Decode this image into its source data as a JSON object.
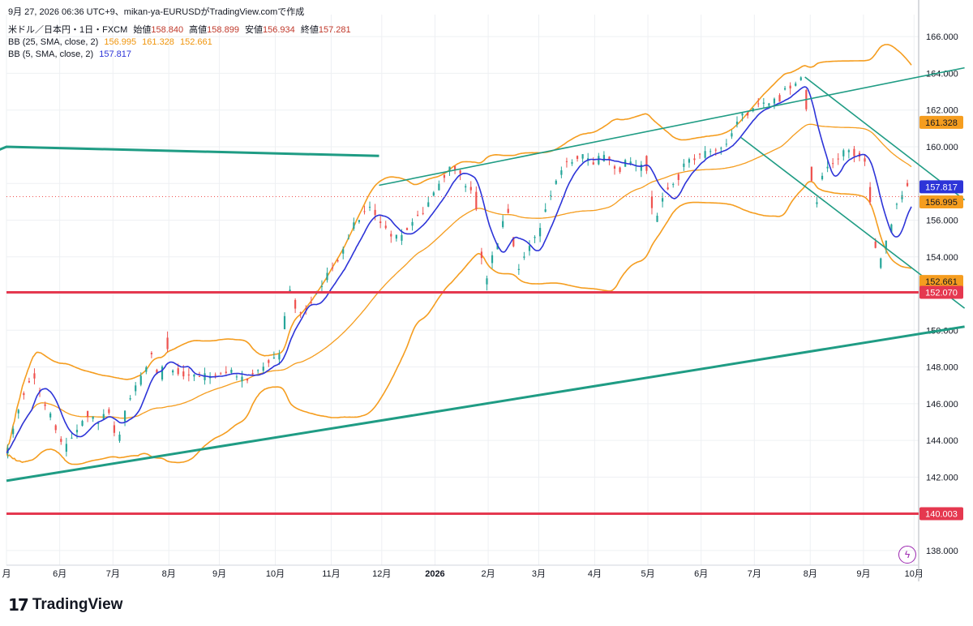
{
  "header": {
    "title_line": "9月 27, 2026 06:36 UTC+9、mikan-ya-EURUSDがTradingView.comで作成",
    "symbol": "米ドル／日本円・1日・FXCM",
    "open_label": "始値",
    "open_value": "158.840",
    "high_label": "高値",
    "high_value": "158.899",
    "low_label": "安値",
    "low_value": "156.934",
    "close_label": "終値",
    "close_value": "157.281",
    "bb25_label": "BB (25, SMA, close, 2)",
    "bb25_basis": "156.995",
    "bb25_upper": "161.328",
    "bb25_lower": "152.661",
    "bb5_label": "BB (5, SMA, close, 2)",
    "bb5_basis": "157.817"
  },
  "branding": {
    "logo_mark": "17",
    "logo_text": "TradingView",
    "bolt_icon": "ϟ"
  },
  "colors": {
    "bull": "#26a69a",
    "bear": "#ef5350",
    "bb25": "#f59d1f",
    "bb5": "#2d34d8",
    "channel": "#1f9c84",
    "hline": "#e5384f",
    "grid": "#eef0f3",
    "axis_text": "#131722"
  },
  "chart_data": {
    "type": "candlestick",
    "ylim": [
      137.2,
      167.2
    ],
    "yticks": [
      "138.000",
      "140.000",
      "142.000",
      "144.000",
      "146.000",
      "148.000",
      "150.000",
      "152.000",
      "154.000",
      "156.000",
      "158.000",
      "160.000",
      "162.000",
      "164.000",
      "166.000"
    ],
    "x_range": [
      0,
      170
    ],
    "xticks": [
      {
        "label": "月",
        "x": 0
      },
      {
        "label": "6月",
        "x": 10
      },
      {
        "label": "7月",
        "x": 20
      },
      {
        "label": "8月",
        "x": 30.5
      },
      {
        "label": "9月",
        "x": 40
      },
      {
        "label": "10月",
        "x": 50.5
      },
      {
        "label": "11月",
        "x": 61
      },
      {
        "label": "12月",
        "x": 70.5
      },
      {
        "label": "2026",
        "x": 80.5,
        "bold": true
      },
      {
        "label": "2月",
        "x": 90.5
      },
      {
        "label": "3月",
        "x": 100
      },
      {
        "label": "4月",
        "x": 110.5
      },
      {
        "label": "5月",
        "x": 120.5
      },
      {
        "label": "6月",
        "x": 130.5
      },
      {
        "label": "7月",
        "x": 140.5
      },
      {
        "label": "8月",
        "x": 151
      },
      {
        "label": "9月",
        "x": 161
      },
      {
        "label": "10月",
        "x": 170.5
      }
    ],
    "close_anchors": [
      [
        0,
        143.3
      ],
      [
        3,
        146.5
      ],
      [
        5,
        147.8
      ],
      [
        7,
        146.0
      ],
      [
        9,
        144.8
      ],
      [
        11,
        143.5
      ],
      [
        13,
        144.6
      ],
      [
        15,
        145.4
      ],
      [
        17,
        145.0
      ],
      [
        19,
        145.5
      ],
      [
        21,
        144.1
      ],
      [
        23,
        146.2
      ],
      [
        25,
        147.2
      ],
      [
        27,
        148.7
      ],
      [
        29,
        147.3
      ],
      [
        30,
        149.6
      ],
      [
        31,
        147.9
      ],
      [
        33,
        147.7
      ],
      [
        36,
        147.4
      ],
      [
        39,
        147.6
      ],
      [
        42,
        147.7
      ],
      [
        44,
        147.2
      ],
      [
        46,
        147.6
      ],
      [
        48,
        148.0
      ],
      [
        50,
        148.6
      ],
      [
        51,
        148.2
      ],
      [
        53,
        152.2
      ],
      [
        55,
        150.8
      ],
      [
        57,
        151.6
      ],
      [
        59,
        152.4
      ],
      [
        61,
        153.4
      ],
      [
        63,
        154.0
      ],
      [
        65,
        155.7
      ],
      [
        67,
        156.3
      ],
      [
        68,
        156.8
      ],
      [
        70,
        155.9
      ],
      [
        72,
        155.2
      ],
      [
        74,
        154.9
      ],
      [
        76,
        155.9
      ],
      [
        78,
        156.4
      ],
      [
        80,
        157.3
      ],
      [
        82,
        158.4
      ],
      [
        84,
        159.1
      ],
      [
        86,
        158.0
      ],
      [
        88,
        157.5
      ],
      [
        89,
        154.5
      ],
      [
        90,
        152.7
      ],
      [
        92,
        154.6
      ],
      [
        93,
        155.8
      ],
      [
        94,
        156.7
      ],
      [
        95,
        154.9
      ],
      [
        96,
        153.3
      ],
      [
        98,
        154.5
      ],
      [
        100,
        155.3
      ],
      [
        101,
        156.5
      ],
      [
        103,
        158.0
      ],
      [
        105,
        159.0
      ],
      [
        108,
        159.5
      ],
      [
        110,
        159.2
      ],
      [
        113,
        159.4
      ],
      [
        115,
        158.8
      ],
      [
        117,
        159.2
      ],
      [
        119,
        158.9
      ],
      [
        120,
        159.3
      ],
      [
        121,
        157.2
      ],
      [
        122,
        155.9
      ],
      [
        124,
        157.7
      ],
      [
        126,
        158.3
      ],
      [
        128,
        159.2
      ],
      [
        131,
        159.6
      ],
      [
        133,
        159.9
      ],
      [
        135,
        160.2
      ],
      [
        137,
        161.3
      ],
      [
        139,
        161.8
      ],
      [
        141,
        162.3
      ],
      [
        143,
        162.2
      ],
      [
        145,
        162.6
      ],
      [
        147,
        163.2
      ],
      [
        149,
        163.8
      ],
      [
        150,
        163.1
      ],
      [
        151,
        158.8
      ],
      [
        152,
        156.8
      ],
      [
        153,
        158.4
      ],
      [
        155,
        159.2
      ],
      [
        157,
        159.6
      ],
      [
        160,
        159.7
      ],
      [
        161,
        159.4
      ],
      [
        162,
        157.8
      ],
      [
        163,
        154.7
      ],
      [
        164,
        153.5
      ],
      [
        165,
        154.4
      ],
      [
        167,
        156.7
      ],
      [
        169,
        157.9
      ],
      [
        170,
        157.3
      ]
    ],
    "series": [
      {
        "name": "BB (25, SMA, close, 2) basis",
        "value": 156.995
      },
      {
        "name": "BB (25, SMA, close, 2) upper",
        "value": 161.328
      },
      {
        "name": "BB (25, SMA, close, 2) lower",
        "value": 152.661
      },
      {
        "name": "BB (5, SMA, close, 2) basis",
        "value": 157.817
      }
    ],
    "channel_lines": [
      {
        "name": "ascending-upper",
        "points": [
          [
            -10,
            158.8
          ],
          [
            0,
            160.0
          ],
          [
            70,
            159.5
          ]
        ]
      },
      {
        "name": "ascending-lower",
        "points": [
          [
            0,
            141.8
          ],
          [
            180,
            150.2
          ]
        ]
      },
      {
        "name": "channel-upper-2",
        "points": [
          [
            70,
            157.9
          ],
          [
            149,
            162.5
          ],
          [
            180,
            164.3
          ]
        ]
      },
      {
        "name": "descending-upper",
        "points": [
          [
            150,
            163.8
          ],
          [
            180,
            157.1
          ]
        ]
      },
      {
        "name": "descending-lower",
        "points": [
          [
            138,
            160.5
          ],
          [
            180,
            151.2
          ]
        ]
      }
    ],
    "horizontal_lines": [
      {
        "name": "support-152",
        "value": 152.07,
        "label": "152.070"
      },
      {
        "name": "support-140",
        "value": 140.003,
        "label": "140.003"
      }
    ],
    "price_labels": [
      {
        "label": "161.328",
        "value": 161.328,
        "color": "#f59d1f",
        "text_color": "#131722"
      },
      {
        "label": "157.817",
        "value": 157.817,
        "color": "#2d34d8",
        "text_color": "#ffffff"
      },
      {
        "label": "156.995",
        "value": 156.995,
        "color": "#f59d1f",
        "text_color": "#131722"
      },
      {
        "label": "152.661",
        "value": 152.661,
        "color": "#f59d1f",
        "text_color": "#131722"
      },
      {
        "label": "152.070",
        "value": 152.07,
        "color": "#e5384f",
        "text_color": "#ffffff"
      },
      {
        "label": "140.003",
        "value": 140.003,
        "color": "#e5384f",
        "text_color": "#ffffff"
      }
    ],
    "grid": true,
    "last_price_line": 157.281
  }
}
